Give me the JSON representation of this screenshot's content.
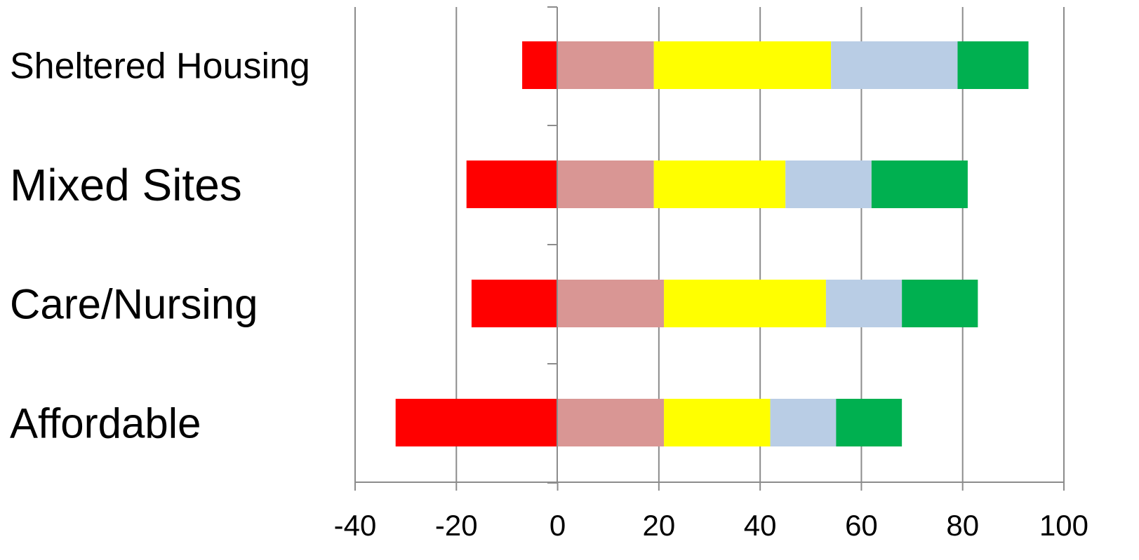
{
  "chart_data": {
    "type": "bar",
    "orientation": "horizontal",
    "stacked": true,
    "title": "",
    "xlabel": "",
    "ylabel": "",
    "xlim": [
      -40,
      100
    ],
    "xticks": [
      -40,
      -20,
      0,
      20,
      40,
      60,
      80,
      100
    ],
    "xtick_labels": [
      "-40",
      "-20",
      "0",
      "20",
      "40",
      "60",
      "80",
      "100"
    ],
    "grid": "vertical",
    "legend": "none",
    "categories": [
      "Sheltered Housing",
      "Mixed Sites",
      "Care/Nursing",
      "Affordable"
    ],
    "category_font_sizes": [
      52,
      64,
      60,
      60
    ],
    "negative_series": {
      "color": "#ff0000",
      "values": [
        -7,
        -18,
        -17,
        -32
      ]
    },
    "series": [
      {
        "color": "#d99694",
        "values": [
          19,
          19,
          21,
          21
        ]
      },
      {
        "color": "#ffff00",
        "values": [
          35,
          26,
          32,
          21
        ]
      },
      {
        "color": "#b9cde5",
        "values": [
          25,
          17,
          15,
          13
        ]
      },
      {
        "color": "#00b050",
        "values": [
          14,
          19,
          15,
          13
        ]
      }
    ]
  }
}
